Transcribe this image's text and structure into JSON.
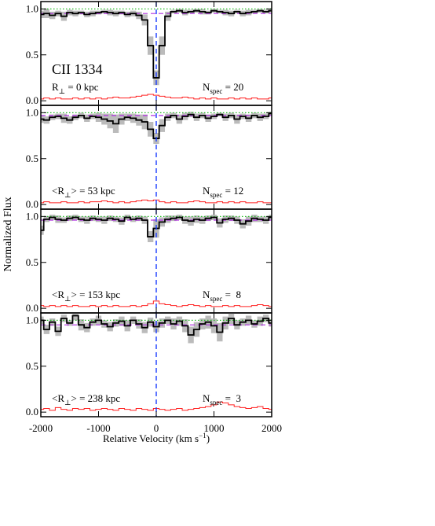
{
  "chart_data": {
    "type": "step",
    "xlabel": [
      "Relative Velocity (km s",
      "−1",
      ")"
    ],
    "ylabel": "Normalized Flux",
    "xlim": [
      -2000,
      2000
    ],
    "ylim": [
      -0.05,
      1.08
    ],
    "xticks": [
      -2000,
      -1000,
      0,
      1000,
      2000
    ],
    "yticks": [
      {
        "value": 0,
        "label": "0.0"
      },
      {
        "value": 0.5,
        "label": "0.5"
      },
      {
        "value": 1,
        "label": "1.0"
      }
    ],
    "reference_level": 1,
    "center_velocity": 0,
    "colors": {
      "flux": "#000000",
      "error": "#ff2020",
      "scatter": "#bbbbbb",
      "continuum": "#b030e0",
      "reference": "#22bb22",
      "center": "#1a3cff"
    },
    "x": [
      -2000,
      -1900,
      -1800,
      -1700,
      -1600,
      -1500,
      -1400,
      -1300,
      -1200,
      -1100,
      -1000,
      -900,
      -800,
      -700,
      -600,
      -500,
      -400,
      -300,
      -200,
      -100,
      0,
      100,
      200,
      300,
      400,
      500,
      600,
      700,
      800,
      900,
      1000,
      1100,
      1200,
      1300,
      1400,
      1500,
      1600,
      1700,
      1800,
      1900,
      2000
    ],
    "panels": [
      {
        "species": "CII 1334",
        "r_label": [
          "R",
          "⊥",
          " = 0 kpc"
        ],
        "n_label": [
          "N",
          "spec",
          " = 20"
        ],
        "continuum": 0.95,
        "flux": [
          0.94,
          0.95,
          0.93,
          0.95,
          0.92,
          0.96,
          0.95,
          0.96,
          0.94,
          0.95,
          0.96,
          0.97,
          0.96,
          0.95,
          0.96,
          0.94,
          0.95,
          0.93,
          0.88,
          0.6,
          0.25,
          0.6,
          0.92,
          0.97,
          0.98,
          0.96,
          0.97,
          0.98,
          0.97,
          0.96,
          0.98,
          0.97,
          0.96,
          0.95,
          0.97,
          0.95,
          0.96,
          0.97,
          0.98,
          0.97,
          0.98
        ],
        "error": [
          0.02,
          0.03,
          0.02,
          0.03,
          0.02,
          0.02,
          0.03,
          0.02,
          0.03,
          0.02,
          0.03,
          0.02,
          0.03,
          0.04,
          0.03,
          0.03,
          0.04,
          0.05,
          0.06,
          0.07,
          0.06,
          0.05,
          0.04,
          0.03,
          0.03,
          0.04,
          0.03,
          0.02,
          0.03,
          0.02,
          0.03,
          0.02,
          0.02,
          0.03,
          0.02,
          0.03,
          0.02,
          0.03,
          0.02,
          0.02,
          0.03
        ],
        "scatter": [
          0.04,
          0.05,
          0.04,
          0.03,
          0.05,
          0.03,
          0.03,
          0.02,
          0.03,
          0.03,
          0.02,
          0.02,
          0.03,
          0.03,
          0.02,
          0.03,
          0.03,
          0.04,
          0.06,
          0.1,
          0.08,
          0.1,
          0.05,
          0.02,
          0.02,
          0.03,
          0.02,
          0.02,
          0.03,
          0.02,
          0.02,
          0.02,
          0.03,
          0.03,
          0.02,
          0.03,
          0.03,
          0.02,
          0.02,
          0.02,
          0.02
        ]
      },
      {
        "r_label": [
          "<R",
          "⊥",
          "> = 53 kpc"
        ],
        "n_label": [
          "N",
          "spec",
          " = 12"
        ],
        "continuum": 0.97,
        "flux": [
          0.93,
          0.92,
          0.95,
          0.96,
          0.94,
          0.92,
          0.95,
          0.97,
          0.94,
          0.96,
          0.95,
          0.93,
          0.91,
          0.88,
          0.93,
          0.95,
          0.94,
          0.92,
          0.9,
          0.82,
          0.72,
          0.86,
          0.95,
          0.97,
          0.93,
          0.96,
          0.98,
          0.95,
          0.97,
          0.94,
          0.96,
          0.98,
          0.95,
          0.97,
          0.93,
          0.96,
          0.94,
          0.97,
          0.95,
          0.96,
          0.99
        ],
        "error": [
          0.02,
          0.03,
          0.02,
          0.02,
          0.03,
          0.02,
          0.02,
          0.03,
          0.02,
          0.03,
          0.03,
          0.04,
          0.03,
          0.02,
          0.03,
          0.02,
          0.03,
          0.04,
          0.05,
          0.04,
          0.05,
          0.03,
          0.02,
          0.03,
          0.02,
          0.02,
          0.03,
          0.04,
          0.03,
          0.02,
          0.02,
          0.03,
          0.02,
          0.03,
          0.02,
          0.03,
          0.02,
          0.02,
          0.03,
          0.02,
          0.02
        ],
        "scatter": [
          0.04,
          0.04,
          0.03,
          0.03,
          0.05,
          0.04,
          0.03,
          0.03,
          0.04,
          0.03,
          0.05,
          0.06,
          0.08,
          0.1,
          0.06,
          0.04,
          0.05,
          0.06,
          0.08,
          0.08,
          0.06,
          0.07,
          0.04,
          0.03,
          0.05,
          0.04,
          0.03,
          0.04,
          0.03,
          0.04,
          0.03,
          0.02,
          0.04,
          0.03,
          0.05,
          0.03,
          0.04,
          0.03,
          0.04,
          0.03,
          0.02
        ]
      },
      {
        "r_label": [
          "<R",
          "⊥",
          "> = 153 kpc"
        ],
        "n_label": [
          "N",
          "spec",
          " =  8"
        ],
        "continuum": 0.96,
        "flux": [
          0.85,
          0.97,
          0.99,
          0.97,
          0.96,
          0.98,
          0.99,
          0.97,
          0.96,
          0.98,
          0.97,
          0.96,
          0.98,
          0.97,
          0.95,
          0.99,
          0.97,
          0.98,
          0.96,
          0.78,
          0.87,
          0.94,
          0.97,
          0.98,
          0.99,
          0.96,
          0.95,
          0.97,
          0.96,
          0.98,
          0.99,
          0.93,
          0.97,
          0.98,
          0.96,
          0.92,
          0.95,
          0.98,
          0.97,
          0.96,
          0.99
        ],
        "error": [
          0.03,
          0.02,
          0.03,
          0.02,
          0.03,
          0.02,
          0.03,
          0.02,
          0.02,
          0.03,
          0.02,
          0.03,
          0.02,
          0.03,
          0.02,
          0.02,
          0.03,
          0.02,
          0.03,
          0.05,
          0.08,
          0.05,
          0.04,
          0.03,
          0.02,
          0.03,
          0.04,
          0.03,
          0.02,
          0.03,
          0.02,
          0.02,
          0.03,
          0.02,
          0.03,
          0.02,
          0.02,
          0.03,
          0.04,
          0.03,
          0.02
        ],
        "scatter": [
          0.05,
          0.03,
          0.03,
          0.04,
          0.03,
          0.03,
          0.03,
          0.03,
          0.04,
          0.03,
          0.03,
          0.04,
          0.03,
          0.03,
          0.04,
          0.03,
          0.03,
          0.03,
          0.04,
          0.06,
          0.1,
          0.05,
          0.04,
          0.03,
          0.03,
          0.04,
          0.05,
          0.04,
          0.04,
          0.03,
          0.03,
          0.05,
          0.04,
          0.03,
          0.04,
          0.05,
          0.05,
          0.04,
          0.03,
          0.04,
          0.03
        ]
      },
      {
        "r_label": [
          "<R",
          "⊥",
          "> = 238 kpc"
        ],
        "n_label": [
          "N",
          "spec",
          " =  3"
        ],
        "continuum": 0.95,
        "flux": [
          1.0,
          0.9,
          0.98,
          0.88,
          1.02,
          0.97,
          1.05,
          0.95,
          0.92,
          0.98,
          1.0,
          0.96,
          0.93,
          0.97,
          0.99,
          0.94,
          1.0,
          0.96,
          0.92,
          0.98,
          0.93,
          0.97,
          1.0,
          0.96,
          0.99,
          0.94,
          0.84,
          0.9,
          0.96,
          0.98,
          0.94,
          0.87,
          0.97,
          1.02,
          0.95,
          0.98,
          1.0,
          0.96,
          0.99,
          1.02,
          0.97
        ],
        "error": [
          0.03,
          0.04,
          0.02,
          0.05,
          0.03,
          0.02,
          0.04,
          0.03,
          0.04,
          0.02,
          0.03,
          0.04,
          0.03,
          0.02,
          0.04,
          0.03,
          0.02,
          0.04,
          0.03,
          0.02,
          0.04,
          0.03,
          0.02,
          0.03,
          0.04,
          0.02,
          0.03,
          0.04,
          0.05,
          0.06,
          0.08,
          0.11,
          0.1,
          0.08,
          0.06,
          0.05,
          0.04,
          0.05,
          0.06,
          0.04,
          0.03
        ],
        "scatter": [
          0.04,
          0.05,
          0.04,
          0.05,
          0.04,
          0.03,
          0.05,
          0.06,
          0.05,
          0.04,
          0.05,
          0.04,
          0.05,
          0.04,
          0.05,
          0.06,
          0.04,
          0.05,
          0.06,
          0.05,
          0.06,
          0.05,
          0.04,
          0.06,
          0.05,
          0.07,
          0.09,
          0.08,
          0.06,
          0.07,
          0.08,
          0.1,
          0.07,
          0.06,
          0.05,
          0.04,
          0.05,
          0.04,
          0.05,
          0.04,
          0.04
        ]
      }
    ]
  }
}
